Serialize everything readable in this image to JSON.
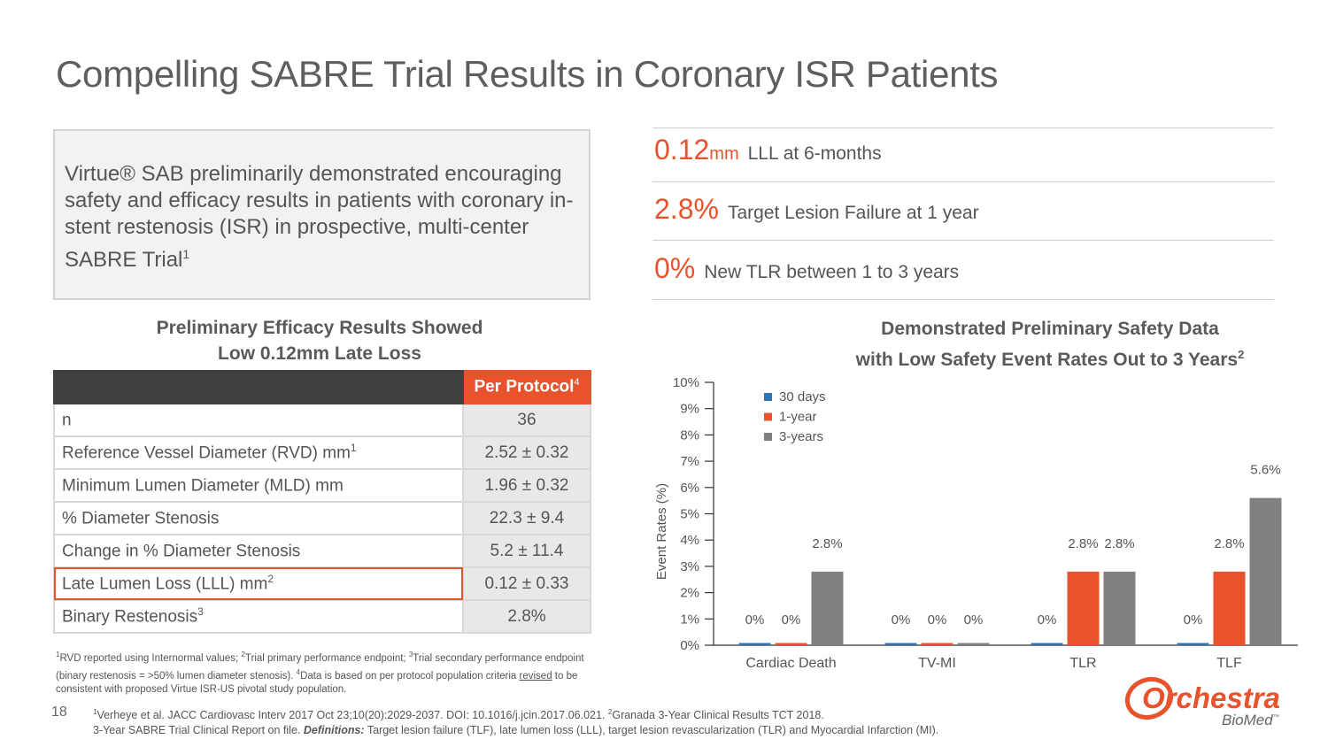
{
  "title": "Compelling SABRE Trial Results in Coronary ISR Patients",
  "intro": {
    "text": "Virtue® SAB preliminarily demonstrated encouraging safety and efficacy results in patients with coronary in-stent restenosis (ISR) in prospective, multi-center SABRE Trial",
    "sup": "1"
  },
  "stats": [
    {
      "big": "0.12",
      "unit": "mm",
      "desc": "LLL at 6-months"
    },
    {
      "big": "2.8%",
      "unit": "",
      "desc": "Target Lesion Failure at 1 year"
    },
    {
      "big": "0%",
      "unit": "",
      "desc": "New TLR between 1 to 3 years"
    }
  ],
  "efficacy": {
    "title_line1": "Preliminary Efficacy Results Showed",
    "title_line2": "Low 0.12mm Late Loss",
    "header_label": "Per Protocol",
    "header_sup": "4",
    "rows": [
      {
        "label": "n",
        "sup": "",
        "value": "36"
      },
      {
        "label": "Reference Vessel Diameter (RVD) mm",
        "sup": "1",
        "value": "2.52 ± 0.32"
      },
      {
        "label": "Minimum Lumen Diameter (MLD) mm",
        "sup": "",
        "value": "1.96 ± 0.32"
      },
      {
        "label": "% Diameter Stenosis",
        "sup": "",
        "value": "22.3 ± 9.4"
      },
      {
        "label": "Change in % Diameter Stenosis",
        "sup": "",
        "value": "5.2 ± 11.4"
      },
      {
        "label": "Late Lumen Loss (LLL) mm",
        "sup": "2",
        "value": "0.12 ± 0.33"
      },
      {
        "label": "Binary Restenosis",
        "sup": "3",
        "value": "2.8%"
      }
    ]
  },
  "footnote": {
    "s1": "1",
    "t1": "RVD reported using Internormal values; ",
    "s2": "2",
    "t2": "Trial primary performance endpoint; ",
    "s3": "3",
    "t3": "Trial secondary performance endpoint (binary restenosis = >50% lumen diameter stenosis). ",
    "s4": "4",
    "t4": "Data is based on per protocol population criteria ",
    "underlined": "revised",
    "t5": " to be consistent with proposed Virtue ISR-US pivotal study population."
  },
  "safety": {
    "title_line1": "Demonstrated Preliminary Safety Data",
    "title_line2": "with Low Safety Event Rates Out to 3 Years",
    "title_sup": "2"
  },
  "chart_data": {
    "type": "bar",
    "title": "Demonstrated Preliminary Safety Data with Low Safety Event Rates Out to 3 Years",
    "xlabel": "",
    "ylabel": "Event Rates (%)",
    "ylim": [
      0,
      10
    ],
    "yticks": [
      "0%",
      "1%",
      "2%",
      "3%",
      "4%",
      "5%",
      "6%",
      "7%",
      "8%",
      "9%",
      "10%"
    ],
    "categories": [
      "Cardiac Death",
      "TV-MI",
      "TLR",
      "TLF"
    ],
    "legend_position": "top-left",
    "series": [
      {
        "name": "30 days",
        "color": "#2e75b6",
        "values": [
          0,
          0,
          0,
          0
        ],
        "labels": [
          "0%",
          "0%",
          "0%",
          "0%"
        ]
      },
      {
        "name": "1-year",
        "color": "#e8532d",
        "values": [
          0,
          0,
          2.8,
          2.8
        ],
        "labels": [
          "0%",
          "0%",
          "2.8%",
          "2.8%"
        ]
      },
      {
        "name": "3-years",
        "color": "#808080",
        "values": [
          2.8,
          0,
          2.8,
          5.6
        ],
        "labels": [
          "2.8%",
          "0%",
          "2.8%",
          "5.6%"
        ]
      }
    ]
  },
  "page_number": "18",
  "refs": {
    "s1": "1",
    "t1": "Verheye et al. JACC Cardiovasc Interv 2017 Oct 23;10(20):2029-2037. DOI: 10.1016/j.jcin.2017.06.021. ",
    "s2": "2",
    "t2": "Granada 3-Year Clinical Results TCT 2018.",
    "t3": "3-Year SABRE Trial Clinical Report on file. ",
    "def_label": "Definitions:",
    "t4": " Target lesion failure (TLF), late lumen loss (LLL), target lesion revascularization (TLR) and Myocardial Infarction (MI)."
  },
  "logo": {
    "line1": "Orchestra",
    "line2": "BioMed",
    "tm": "™"
  },
  "colors": {
    "accent": "#e8532d",
    "blue": "#2e75b6",
    "gray": "#808080"
  }
}
